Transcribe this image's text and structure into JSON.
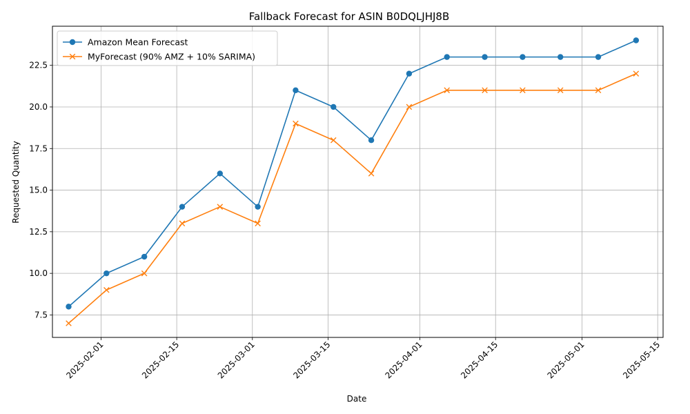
{
  "chart_data": {
    "type": "line",
    "title": "Fallback Forecast for ASIN B0DQLJHJ8B",
    "xlabel": "Date",
    "ylabel": "Requested Quantity",
    "x": [
      "2025-01-26",
      "2025-02-02",
      "2025-02-09",
      "2025-02-16",
      "2025-02-23",
      "2025-03-02",
      "2025-03-09",
      "2025-03-16",
      "2025-03-23",
      "2025-03-30",
      "2025-04-06",
      "2025-04-13",
      "2025-04-20",
      "2025-04-27",
      "2025-05-04",
      "2025-05-11"
    ],
    "x_ticks": [
      "2025-02-01",
      "2025-02-15",
      "2025-03-01",
      "2025-03-15",
      "2025-04-01",
      "2025-04-15",
      "2025-05-01",
      "2025-05-15"
    ],
    "y_ticks": [
      7.5,
      10.0,
      12.5,
      15.0,
      17.5,
      20.0,
      22.5
    ],
    "y_tick_labels": [
      "7.5",
      "10.0",
      "12.5",
      "15.0",
      "17.5",
      "20.0",
      "22.5"
    ],
    "xlim": [
      "2025-01-23",
      "2025-05-16"
    ],
    "ylim": [
      6.15,
      24.85
    ],
    "grid": true,
    "legend_position": "top-left",
    "series": [
      {
        "name": "Amazon Mean Forecast",
        "color": "#1f77b4",
        "marker": "circle",
        "values": [
          8,
          10,
          11,
          14,
          16,
          14,
          21,
          20,
          18,
          22,
          23,
          23,
          23,
          23,
          23,
          24
        ]
      },
      {
        "name": "MyForecast (90% AMZ + 10% SARIMA)",
        "color": "#ff7f0e",
        "marker": "x",
        "values": [
          7,
          9,
          10,
          13,
          14,
          13,
          19,
          18,
          16,
          20,
          21,
          21,
          21,
          21,
          21,
          22
        ]
      }
    ]
  }
}
